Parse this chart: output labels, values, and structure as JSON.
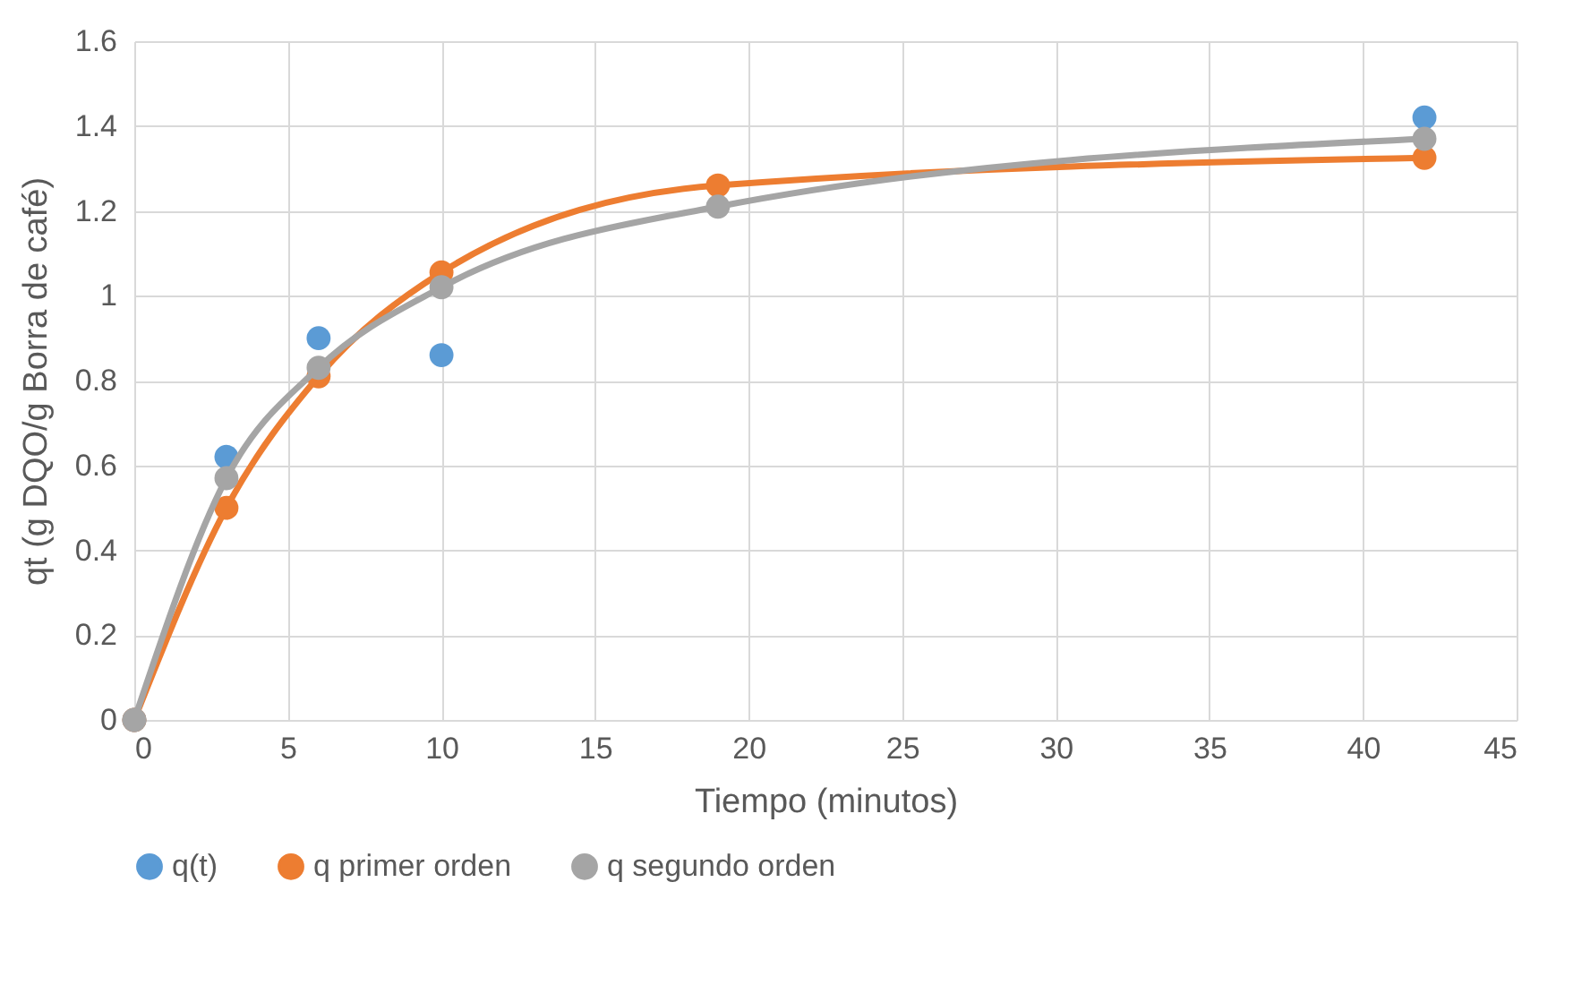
{
  "chart_data": {
    "type": "line",
    "xlabel": "Tiempo (minutos)",
    "ylabel": "qt (g DQO/g Borra de café)",
    "x": [
      0,
      3,
      6,
      10,
      19,
      42
    ],
    "series": [
      {
        "name": "q(t)",
        "type": "scatter",
        "color": "#5b9bd5",
        "values": [
          0,
          0.62,
          0.9,
          0.86,
          null,
          1.42
        ]
      },
      {
        "name": "q primer orden",
        "color": "#ed7d31",
        "values": [
          0,
          0.5,
          0.81,
          1.055,
          1.26,
          1.325
        ]
      },
      {
        "name": "q segundo orden",
        "color": "#a5a5a5",
        "values": [
          0,
          0.57,
          0.83,
          1.02,
          1.21,
          1.37
        ]
      }
    ],
    "xlim": [
      0,
      45
    ],
    "xticks": [
      0,
      5,
      10,
      15,
      20,
      25,
      30,
      35,
      40,
      45
    ],
    "ylim": [
      0,
      1.6
    ],
    "yticks": [
      0,
      0.2,
      0.4,
      0.6,
      0.8,
      1,
      1.2,
      1.4,
      1.6
    ],
    "grid": true,
    "legend": "bottom",
    "marker": "circle",
    "line_style": "solid"
  }
}
